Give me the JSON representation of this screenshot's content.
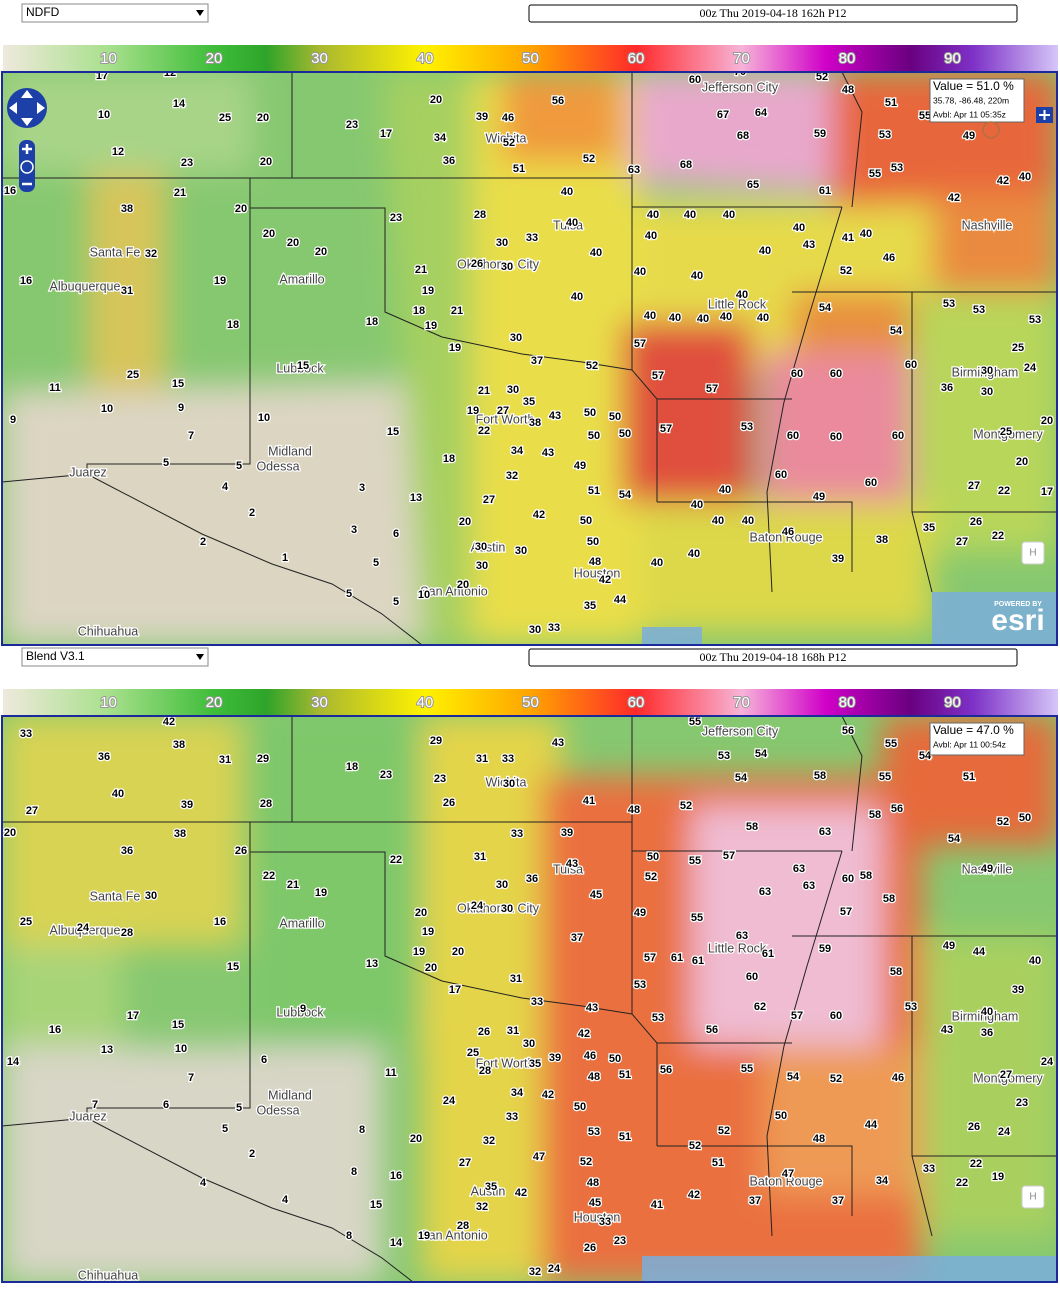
{
  "colorbar_ticks": [
    10,
    20,
    30,
    40,
    50,
    60,
    70,
    80,
    90
  ],
  "cities": [
    "Jefferson City",
    "Wichita",
    "Tulsa",
    "Nashville",
    "Santa Fe",
    "Albuquerque",
    "Amarillo",
    "Oklahoma City",
    "Little Rock",
    "Lubbock",
    "Birmingham",
    "Fort Worth",
    "Montgomery",
    "Midland",
    "Odessa",
    "Juarez",
    "Baton Rouge",
    "Austin",
    "Houston",
    "San Antonio",
    "Chihuahua"
  ],
  "panels": [
    {
      "model": "NDFD",
      "valid_time": "00z Thu 2019-04-18 162h P12",
      "popup": {
        "value": "Value = 51.0 %",
        "location": "35.78, -86.48, 220m",
        "available": "Avbl: Apr 11 05:35z"
      },
      "home_button": "H",
      "attribution_top": "POWERED BY",
      "attribution": "esri",
      "points": [
        17,
        12,
        14,
        10,
        25,
        20,
        12,
        23,
        20,
        16,
        21,
        38,
        20,
        32,
        20,
        20,
        20,
        16,
        31,
        19,
        18,
        15,
        11,
        25,
        15,
        10,
        9,
        9,
        7,
        10,
        5,
        5,
        4,
        2,
        2,
        1,
        3,
        3,
        6,
        5,
        5,
        5,
        20,
        23,
        17,
        34,
        36,
        39,
        46,
        52,
        51,
        56,
        52,
        40,
        28,
        23,
        30,
        33,
        40,
        40,
        26,
        30,
        21,
        19,
        18,
        18,
        19,
        21,
        19,
        30,
        37,
        40,
        52,
        21,
        30,
        35,
        19,
        27,
        22,
        38,
        43,
        50,
        50,
        50,
        50,
        15,
        18,
        34,
        43,
        49,
        32,
        51,
        54,
        27,
        13,
        42,
        20,
        50,
        50,
        30,
        30,
        30,
        48,
        42,
        44,
        35,
        20,
        10,
        30,
        33,
        63,
        60,
        70,
        67,
        64,
        68,
        68,
        65,
        59,
        61,
        52,
        48,
        51,
        53,
        55,
        53,
        55,
        49,
        42,
        42,
        40,
        40,
        40,
        40,
        40,
        40,
        43,
        41,
        40,
        46,
        52,
        40,
        40,
        40,
        40,
        40,
        40,
        40,
        40,
        40,
        54,
        54,
        53,
        53,
        53,
        25,
        57,
        57,
        57,
        60,
        60,
        60,
        60,
        60,
        60,
        57,
        53,
        60,
        60,
        49,
        40,
        40,
        40,
        40,
        40,
        40,
        46,
        39,
        38,
        35,
        27,
        26,
        22,
        36,
        30,
        30,
        24,
        25,
        20,
        27,
        22,
        17,
        20
      ]
    },
    {
      "model": "Blend V3.1",
      "valid_time": "00z Thu 2019-04-18 168h P12",
      "popup": {
        "value": "Value = 47.0  %",
        "available": "Avbl: Apr 11 00:54z"
      },
      "home_button": "H",
      "points": [
        33,
        42,
        36,
        38,
        31,
        29,
        40,
        39,
        28,
        27,
        20,
        38,
        36,
        26,
        30,
        22,
        21,
        19,
        25,
        24,
        28,
        16,
        15,
        9,
        16,
        17,
        15,
        13,
        10,
        14,
        7,
        6,
        7,
        6,
        5,
        5,
        2,
        4,
        4,
        8,
        8,
        16,
        15,
        8,
        14,
        11,
        13,
        29,
        18,
        23,
        23,
        26,
        31,
        33,
        30,
        43,
        41,
        48,
        52,
        33,
        39,
        22,
        31,
        30,
        36,
        43,
        45,
        24,
        30,
        20,
        19,
        19,
        20,
        20,
        17,
        31,
        33,
        37,
        43,
        42,
        26,
        31,
        30,
        25,
        28,
        35,
        39,
        46,
        50,
        48,
        51,
        24,
        34,
        42,
        50,
        33,
        53,
        51,
        20,
        32,
        47,
        27,
        52,
        48,
        35,
        42,
        32,
        45,
        33,
        23,
        26,
        28,
        19,
        32,
        24,
        55,
        53,
        54,
        54,
        58,
        63,
        58,
        56,
        55,
        55,
        58,
        56,
        54,
        51,
        54,
        52,
        50,
        50,
        52,
        55,
        57,
        63,
        63,
        60,
        58,
        58,
        57,
        49,
        55,
        63,
        63,
        61,
        60,
        61,
        61,
        57,
        59,
        58,
        49,
        44,
        40,
        39,
        53,
        53,
        56,
        62,
        57,
        60,
        53,
        56,
        55,
        54,
        52,
        46,
        50,
        48,
        44,
        52,
        52,
        51,
        37,
        41,
        42,
        47,
        37,
        34,
        33,
        22,
        22,
        19,
        43,
        40,
        36,
        27,
        23,
        26,
        24,
        24,
        49
      ]
    }
  ]
}
